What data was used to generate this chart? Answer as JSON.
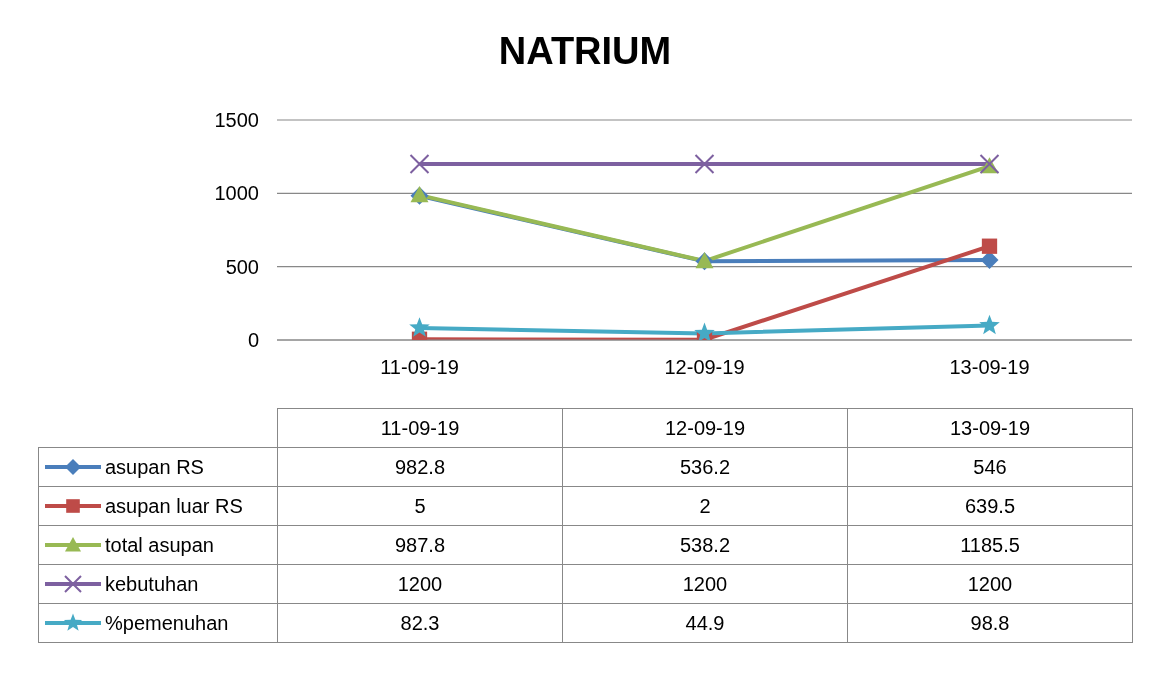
{
  "chart_data": {
    "type": "line",
    "title": "NATRIUM",
    "categories": [
      "11-09-19",
      "12-09-19",
      "13-09-19"
    ],
    "series": [
      {
        "name": "asupan RS",
        "color": "#4a7ebb",
        "marker": "diamond",
        "values": [
          982.8,
          536.2,
          546
        ]
      },
      {
        "name": "asupan luar RS",
        "color": "#be4b48",
        "marker": "square",
        "values": [
          5,
          2,
          639.5
        ]
      },
      {
        "name": "total asupan",
        "color": "#98b954",
        "marker": "triangle",
        "values": [
          987.8,
          538.2,
          1185.5
        ]
      },
      {
        "name": "kebutuhan",
        "color": "#7d60a0",
        "marker": "cross",
        "values": [
          1200,
          1200,
          1200
        ]
      },
      {
        "name": "%pemenuhan",
        "color": "#46aac5",
        "marker": "star",
        "values": [
          82.3,
          44.9,
          98.8
        ]
      }
    ],
    "ylim": [
      0,
      1500
    ],
    "yticks": [
      0,
      500,
      1000,
      1500
    ],
    "grid": "y",
    "legend": "bottom",
    "data_labels": true
  }
}
